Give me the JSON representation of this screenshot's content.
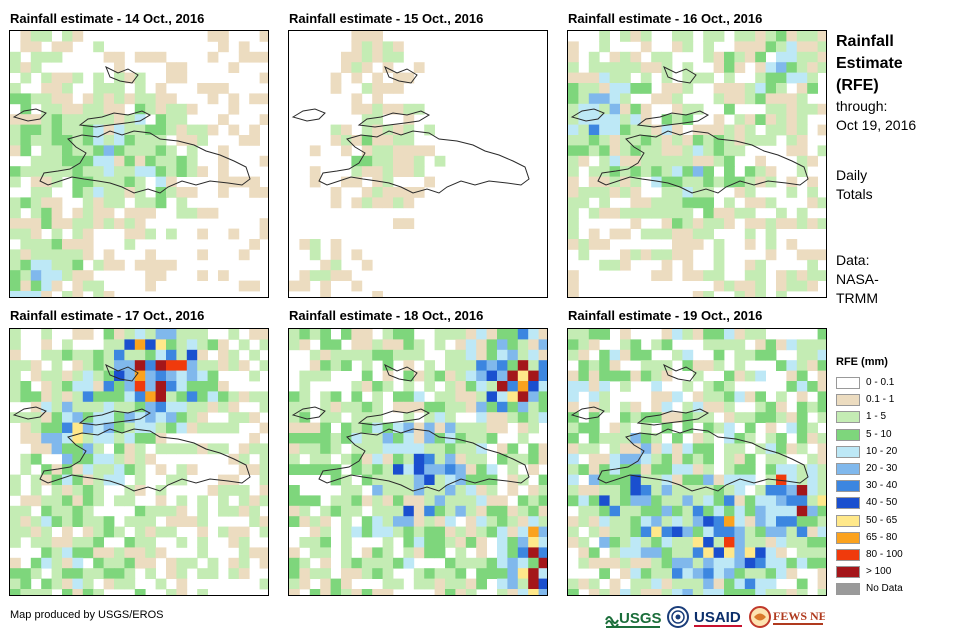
{
  "panels": [
    {
      "title": "Rainfall estimate - 14 Oct., 2016",
      "seed": 14,
      "profile": "light"
    },
    {
      "title": "Rainfall estimate - 15 Oct., 2016",
      "seed": 15,
      "profile": "sparse"
    },
    {
      "title": "Rainfall estimate - 16 Oct., 2016",
      "seed": 16,
      "profile": "moderate"
    },
    {
      "title": "Rainfall estimate - 17 Oct., 2016",
      "seed": 17,
      "profile": "heavy-north"
    },
    {
      "title": "Rainfall estimate - 18 Oct., 2016",
      "seed": 18,
      "profile": "heavy-east"
    },
    {
      "title": "Rainfall estimate - 19 Oct., 2016",
      "seed": 19,
      "profile": "heavy-south"
    }
  ],
  "sidebar": {
    "title_line1": "Rainfall",
    "title_line2": "Estimate",
    "title_line3": "(RFE)",
    "through_label": "through:",
    "through_date": "Oct 19, 2016",
    "totals_line1": "Daily",
    "totals_line2": "Totals",
    "source_line1": "Data:",
    "source_line2": "NASA-",
    "source_line3": "TRMM"
  },
  "legend": {
    "title": "RFE (mm)",
    "items": [
      {
        "label": "0 - 0.1",
        "color": "#ffffff"
      },
      {
        "label": "0.1 - 1",
        "color": "#ecdcc0"
      },
      {
        "label": "1 - 5",
        "color": "#c4ecb4"
      },
      {
        "label": "5 - 10",
        "color": "#7ed67c"
      },
      {
        "label": "10 - 20",
        "color": "#bde8f6"
      },
      {
        "label": "20 - 30",
        "color": "#80b8ec"
      },
      {
        "label": "30 - 40",
        "color": "#3c86e0"
      },
      {
        "label": "40 - 50",
        "color": "#1a4fcf"
      },
      {
        "label": "50 - 65",
        "color": "#ffe88a"
      },
      {
        "label": "65 - 80",
        "color": "#fba21e"
      },
      {
        "label": "80 - 100",
        "color": "#f03a0c"
      },
      {
        "label": "> 100",
        "color": "#a4161a"
      },
      {
        "label": "No Data",
        "color": "#9a9a9a"
      }
    ]
  },
  "footer": {
    "credit": "Map produced by USGS/EROS",
    "logos": {
      "usgs": "USGS",
      "usaid": "USAID",
      "fewsnet": "FEWS NET"
    }
  }
}
